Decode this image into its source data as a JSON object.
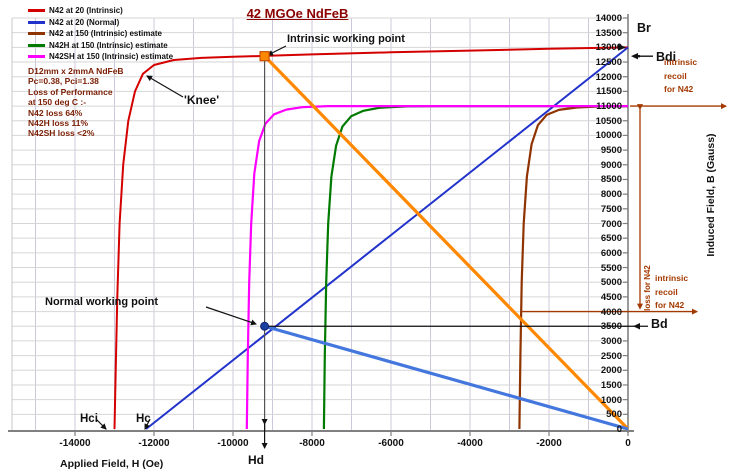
{
  "title": "42 MGOe NdFeB",
  "legend": {
    "items": [
      {
        "label": "N42 at 20 (Intrinsic)",
        "color": "#d40000"
      },
      {
        "label": "N42 at 20 (Normal)",
        "color": "#2233cc"
      },
      {
        "label": "N42 at 150 (Intrinsic) estimate",
        "color": "#8f3300"
      },
      {
        "label": "N42H at 150 (Intrinsic) estimate",
        "color": "#007a00"
      },
      {
        "label": "N42SH at 150 (Intrinsic) estimate",
        "color": "#ff00ff"
      }
    ]
  },
  "info_lines": [
    "D12mm x 2mmA NdFeB",
    "Pc=0.38, Pci=1.38",
    "Loss of Performance",
    "at 150 deg C :-",
    "N42 loss 64%",
    "N42H loss 11%",
    "N42SH loss <2%"
  ],
  "annotations": {
    "intrinsic_working_point": "Intrinsic working point",
    "knee": "'Knee'",
    "normal_working_point": "Normal working point",
    "hci": "Hci",
    "hc": "Hc",
    "hd": "Hd",
    "br": "Br",
    "bdi": "Bdi",
    "bd": "Bd",
    "recoil_top_l1": "intrinsic",
    "recoil_top_l2": "recoil",
    "recoil_top_l3": "for N42",
    "recoil_bottom_l1": "intrinsic",
    "recoil_bottom_l2": "recoil",
    "recoil_bottom_l3": "for N42",
    "loss_label": "loss for N42"
  },
  "chart_data": {
    "type": "line",
    "title": "42 MGOe NdFeB",
    "xlabel": "Applied Field, H (Oe)",
    "ylabel": "Induced Field, B (Gauss)",
    "xlim": [
      -15000,
      0
    ],
    "ylim": [
      0,
      14000
    ],
    "grid": "on",
    "legend_position": "top-left",
    "x_ticks": [
      -14000,
      -12000,
      -10000,
      -8000,
      -6000,
      -4000,
      -2000,
      0
    ],
    "y_ticks": [
      14000,
      13500,
      13000,
      12500,
      12000,
      11500,
      11000,
      10500,
      10000,
      9500,
      9000,
      8500,
      8000,
      7500,
      7000,
      6500,
      6000,
      5500,
      5000,
      4500,
      4000,
      3500,
      3000,
      2500,
      2000,
      1500,
      1000,
      500,
      0
    ],
    "key_values": {
      "Br": 13000,
      "Hci": -13000,
      "Hc": -12200,
      "Hd": -9200,
      "Bdi": 12700,
      "Bd": 3500,
      "Br_at_150": 11000,
      "Pc": 0.38,
      "Pci": 1.38
    },
    "series": [
      {
        "name": "N42 at 20 (Intrinsic)",
        "color": "#d40000",
        "width": 2,
        "points": [
          [
            -13000,
            0
          ],
          [
            -12970,
            2000
          ],
          [
            -12930,
            4500
          ],
          [
            -12870,
            7000
          ],
          [
            -12780,
            9000
          ],
          [
            -12650,
            10500
          ],
          [
            -12480,
            11500
          ],
          [
            -12280,
            12100
          ],
          [
            -12000,
            12400
          ],
          [
            -11500,
            12570
          ],
          [
            -10800,
            12640
          ],
          [
            -10000,
            12680
          ],
          [
            -9200,
            12710
          ],
          [
            -8000,
            12760
          ],
          [
            -6000,
            12830
          ],
          [
            -4000,
            12890
          ],
          [
            -2000,
            12950
          ],
          [
            0,
            13000
          ]
        ]
      },
      {
        "name": "N42 at 20 (Normal)",
        "color": "#2233cc",
        "width": 2,
        "points": [
          [
            -12200,
            0
          ],
          [
            0,
            13000
          ]
        ]
      },
      {
        "name": "N42 at 150 (Intrinsic) estimate",
        "color": "#8f3300",
        "width": 2.2,
        "points": [
          [
            -2750,
            0
          ],
          [
            -2725,
            2500
          ],
          [
            -2690,
            5000
          ],
          [
            -2640,
            7000
          ],
          [
            -2560,
            8600
          ],
          [
            -2440,
            9700
          ],
          [
            -2280,
            10350
          ],
          [
            -2060,
            10700
          ],
          [
            -1750,
            10870
          ],
          [
            -1300,
            10950
          ],
          [
            -700,
            10990
          ],
          [
            0,
            11000
          ]
        ]
      },
      {
        "name": "N42H at 150 (Intrinsic) estimate",
        "color": "#007a00",
        "width": 2.2,
        "points": [
          [
            -7700,
            0
          ],
          [
            -7675,
            2500
          ],
          [
            -7640,
            5000
          ],
          [
            -7590,
            7000
          ],
          [
            -7510,
            8600
          ],
          [
            -7390,
            9650
          ],
          [
            -7230,
            10300
          ],
          [
            -7010,
            10650
          ],
          [
            -6700,
            10840
          ],
          [
            -6300,
            10940
          ],
          [
            -5600,
            10990
          ],
          [
            -4800,
            11000
          ],
          [
            0,
            11000
          ]
        ]
      },
      {
        "name": "N42SH at 150 (Intrinsic) estimate",
        "color": "#ff00ff",
        "width": 2.2,
        "points": [
          [
            -9650,
            0
          ],
          [
            -9625,
            2500
          ],
          [
            -9590,
            5000
          ],
          [
            -9540,
            7000
          ],
          [
            -9460,
            8700
          ],
          [
            -9340,
            9800
          ],
          [
            -9180,
            10400
          ],
          [
            -8960,
            10720
          ],
          [
            -8650,
            10880
          ],
          [
            -8250,
            10960
          ],
          [
            -7600,
            11000
          ],
          [
            0,
            11000
          ]
        ]
      }
    ],
    "load_lines": [
      {
        "name": "intrinsic-load-line",
        "color": "#ff8800",
        "width": 3.2,
        "from": [
          0,
          0
        ],
        "to": [
          -9200,
          12700
        ]
      },
      {
        "name": "normal-load-line",
        "color": "#4477dd",
        "width": 3.2,
        "from": [
          0,
          0
        ],
        "to": [
          -9200,
          3500
        ]
      }
    ],
    "markers": [
      {
        "name": "intrinsic-working-point-marker",
        "at": [
          -9200,
          12700
        ],
        "shape": "square",
        "color": "#ff8800",
        "stroke": "#c85000"
      },
      {
        "name": "normal-working-point-marker",
        "at": [
          -9200,
          3500
        ],
        "shape": "circle",
        "color": "#1b3fa0",
        "stroke": "#10246b"
      }
    ]
  }
}
